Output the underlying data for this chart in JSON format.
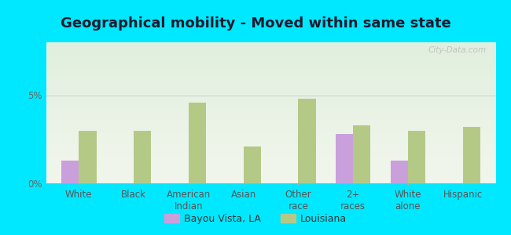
{
  "title": "Geographical mobility - Moved within same state",
  "categories": [
    "White",
    "Black",
    "American\nIndian",
    "Asian",
    "Other\nrace",
    "2+\nraces",
    "White\nalone",
    "Hispanic"
  ],
  "bayou_values": [
    1.3,
    0.0,
    0.0,
    0.0,
    0.0,
    2.8,
    1.3,
    0.0
  ],
  "louisiana_values": [
    3.0,
    3.0,
    4.6,
    2.1,
    4.8,
    3.3,
    3.0,
    3.2
  ],
  "bayou_color": "#c9a0dc",
  "louisiana_color": "#b5c987",
  "ylim": [
    0,
    8
  ],
  "ytick_labels": [
    "0%",
    "5%"
  ],
  "ytick_vals": [
    0,
    5
  ],
  "background_color": "#00e8ff",
  "plot_bg_color": "#eef4e8",
  "bar_width": 0.32,
  "legend_bayou": "Bayou Vista, LA",
  "legend_louisiana": "Louisiana",
  "watermark": "City-Data.com",
  "title_fontsize": 13,
  "tick_fontsize": 8.5
}
